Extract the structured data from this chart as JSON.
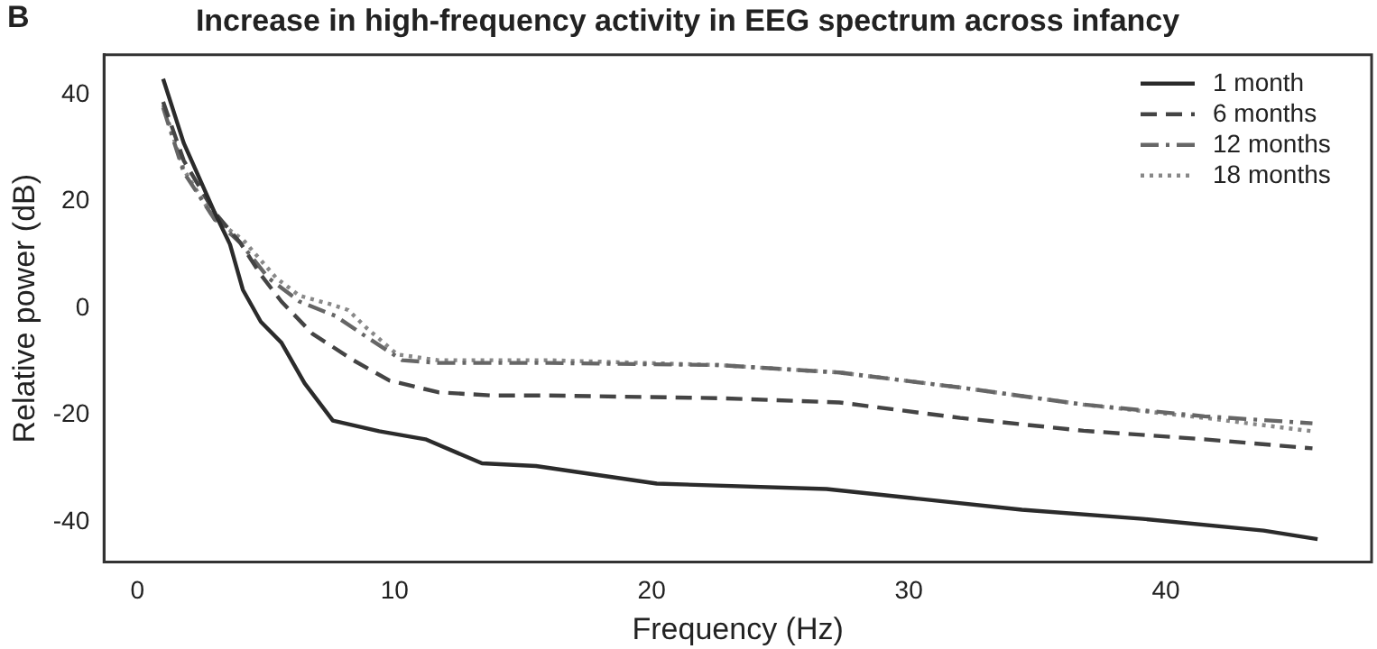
{
  "chart_data": {
    "type": "line",
    "title": "Increase in high-frequency activity in EEG spectrum across infancy",
    "xlabel": "Frequency (Hz)",
    "ylabel": "Relative power (dB)",
    "annotations": [
      "B"
    ],
    "xlim": [
      -1.3,
      48
    ],
    "xticks": [
      0,
      10,
      20,
      30,
      40
    ],
    "ylim": [
      -47.5,
      47.5
    ],
    "yticks": [
      -40,
      -20,
      0,
      20,
      40
    ],
    "grid": false,
    "legend": "top right",
    "marker": "none",
    "series": [
      {
        "name": "1 month",
        "color": "#2b2b2b",
        "line_style": "solid",
        "x": [
          1,
          1.8,
          3,
          3.6,
          4.1,
          4.8,
          5.6,
          6.5,
          7.6,
          9.4,
          11.2,
          13.4,
          15.5,
          20.2,
          26.8,
          30.1,
          34.4,
          39.1,
          43.8,
          45.9
        ],
        "values": [
          43,
          31,
          18,
          12,
          3.5,
          -2.5,
          -6.4,
          -14,
          -21,
          -23,
          -24.5,
          -29,
          -29.5,
          -32.8,
          -33.8,
          -35.5,
          -37.7,
          -39.4,
          -41.6,
          -43.2
        ]
      },
      {
        "name": "6 months",
        "color": "#444444",
        "line_style": "dashed",
        "x": [
          1,
          1.8,
          3,
          4,
          4.8,
          5.6,
          6.8,
          8.4,
          9.8,
          11.7,
          13.8,
          16,
          22.6,
          27.3,
          32,
          36.8,
          41.5,
          45.7
        ],
        "values": [
          38.7,
          27.7,
          18,
          12.3,
          6.3,
          1.3,
          -4.7,
          -9.7,
          -13.5,
          -15.7,
          -16.3,
          -16.3,
          -16.8,
          -17.6,
          -20.5,
          -22.9,
          -24.5,
          -26.2
        ]
      },
      {
        "name": "12 months",
        "color": "#666666",
        "line_style": "dashdot",
        "x": [
          1,
          1.8,
          3,
          4,
          5.1,
          6.3,
          7.7,
          8.9,
          10.3,
          11.7,
          16,
          22.6,
          27.3,
          32,
          36.8,
          41.5,
          45.7
        ],
        "values": [
          37.6,
          25.5,
          16.7,
          12.3,
          5.7,
          1.3,
          -1.4,
          -5.3,
          -9.7,
          -10.2,
          -10.2,
          -10.6,
          -12,
          -14.8,
          -18,
          -20.2,
          -21.5
        ]
      },
      {
        "name": "18 months",
        "color": "#888888",
        "line_style": "dotted",
        "x": [
          1,
          1.8,
          3,
          4.1,
          5.4,
          6.3,
          7.5,
          8.2,
          8.9,
          10.1,
          11.7,
          16,
          22.6,
          27.3,
          32,
          36.8,
          41.5,
          45.7
        ],
        "values": [
          38.1,
          26,
          16.7,
          12.9,
          5.7,
          2.4,
          0.8,
          -0.3,
          -3.6,
          -8.6,
          -9.7,
          -9.7,
          -10.6,
          -12,
          -14.8,
          -18,
          -20.5,
          -23
        ]
      }
    ]
  }
}
